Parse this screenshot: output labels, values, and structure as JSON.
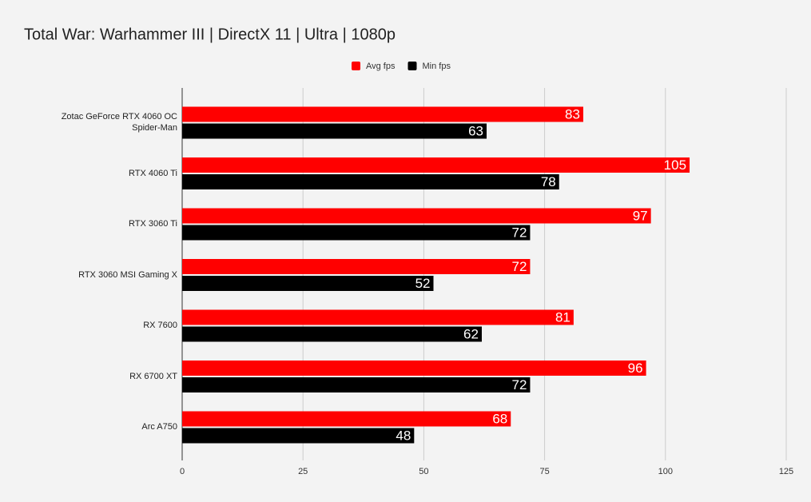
{
  "chart_data": {
    "type": "bar",
    "orientation": "horizontal",
    "title": "Total War: Warhammer III | DirectX 11 | Ultra | 1080p",
    "categories": [
      "Zotac GeForce RTX 4060 OC Spider-Man",
      "RTX 4060 Ti",
      "RTX 3060 Ti",
      "RTX 3060 MSI Gaming X",
      "RX 7600",
      "RX 6700 XT",
      "Arc A750"
    ],
    "series": [
      {
        "name": "Avg fps",
        "color": "#ff0000",
        "values": [
          83,
          105,
          97,
          72,
          81,
          96,
          68
        ]
      },
      {
        "name": "Min fps",
        "color": "#000000",
        "values": [
          63,
          78,
          72,
          52,
          62,
          72,
          48
        ]
      }
    ],
    "xlim": [
      0,
      125
    ],
    "xticks": [
      0,
      25,
      50,
      75,
      100,
      125
    ],
    "grid": true,
    "legend": "top"
  }
}
